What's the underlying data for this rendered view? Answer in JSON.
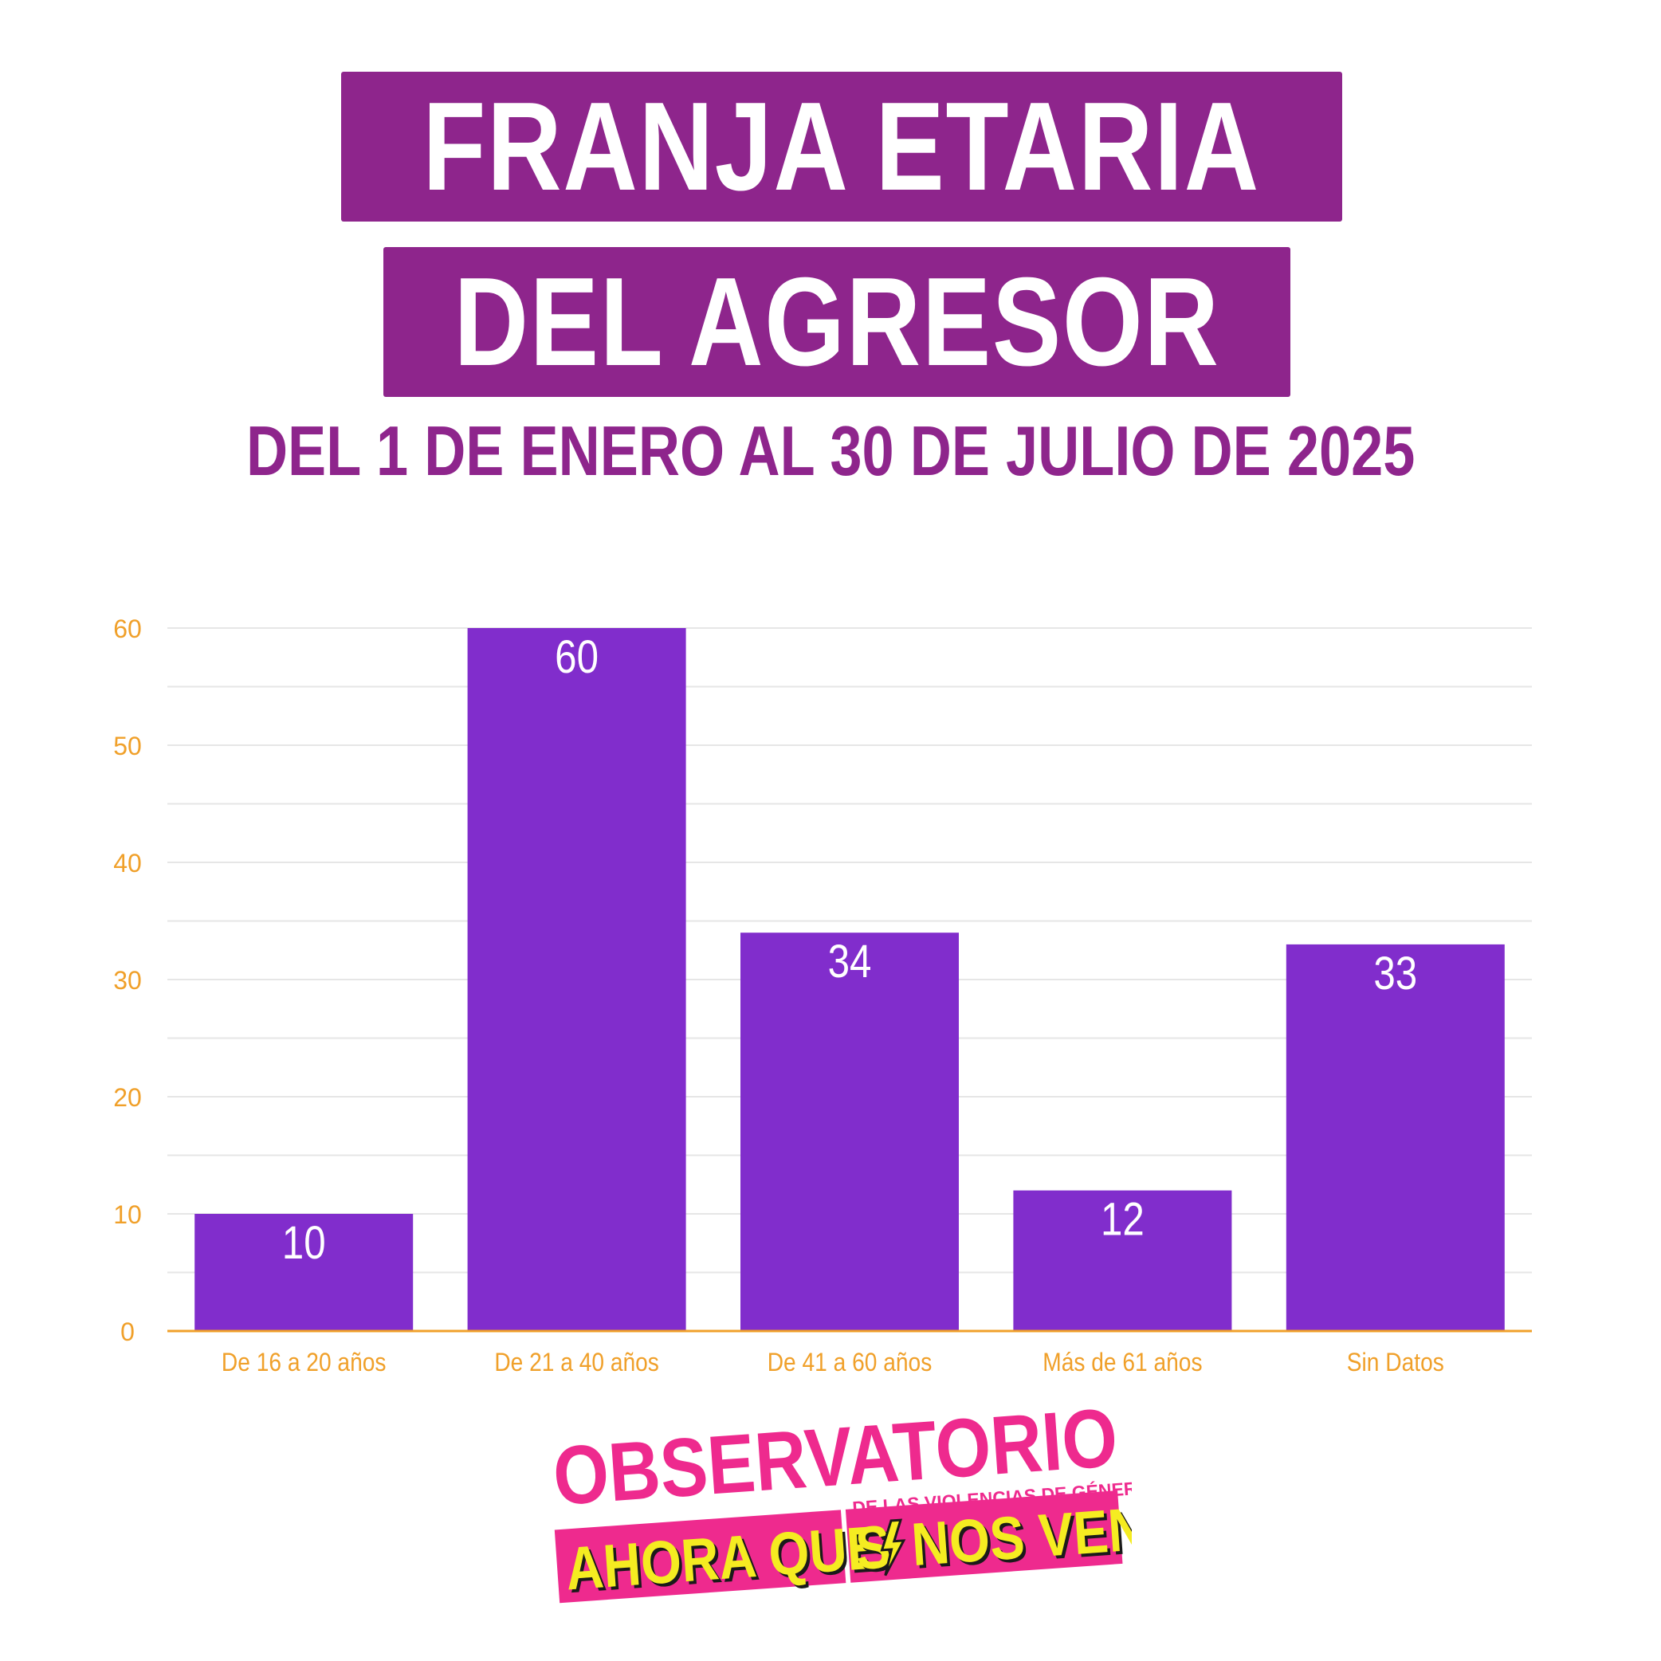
{
  "title": {
    "line1": "FRANJA ETARIA",
    "line2": "DEL AGRESOR",
    "subtitle": "DEL 1 DE ENERO AL 30 DE JULIO DE 2025"
  },
  "colors": {
    "title_band": "#8e258c",
    "bar": "#812dcc",
    "axis_text": "#f0a02a",
    "gridline": "#e6e6e6",
    "logo_pink": "#ee2a8e",
    "logo_yellow": "#f5ec21"
  },
  "chart_data": {
    "type": "bar",
    "categories": [
      "De 16 a 20 años",
      "De 21 a 40 años",
      "De 41 a 60 años",
      "Más de 61 años",
      "Sin Datos"
    ],
    "values": [
      10,
      60,
      34,
      12,
      33
    ],
    "ylim": [
      0,
      60
    ],
    "yticks": [
      0,
      10,
      20,
      30,
      40,
      50,
      60
    ],
    "data_labels": [
      "10",
      "60",
      "34",
      "12",
      "33"
    ],
    "grid": true,
    "xlabel": "",
    "ylabel": ""
  },
  "logo": {
    "line1": "OBSERVATORIO",
    "line2": "DE LAS VIOLENCIAS DE GÉNERO",
    "line3a": "AHORA QUE",
    "line3b": "S",
    "line3c": "NOS VEN"
  }
}
